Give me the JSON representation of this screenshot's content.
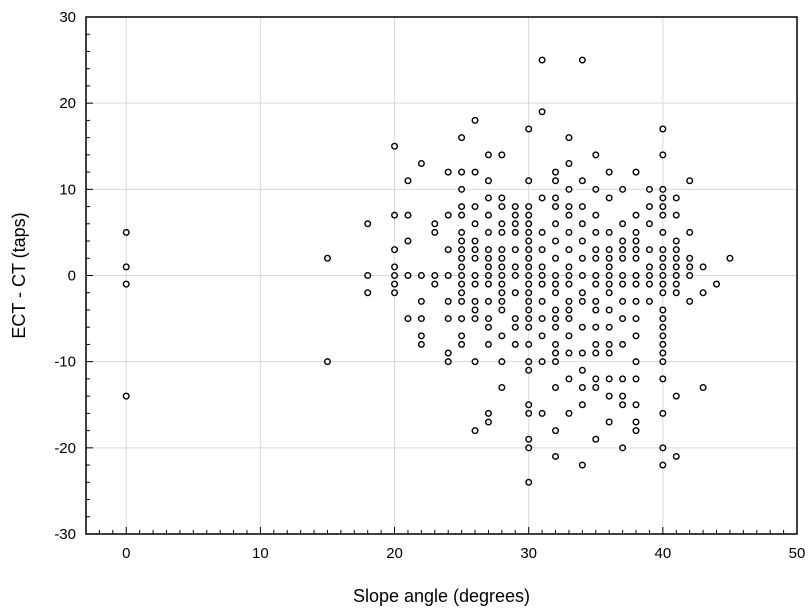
{
  "chart_data": {
    "type": "scatter",
    "title": "",
    "xlabel": "Slope angle (degrees)",
    "ylabel": "ECT - CT (taps)",
    "xlim": [
      -3,
      50
    ],
    "ylim": [
      -30,
      30
    ],
    "x_ticks": [
      0,
      10,
      20,
      30,
      40,
      50
    ],
    "y_ticks": [
      -30,
      -20,
      -10,
      0,
      10,
      20,
      30
    ],
    "x_tick_labels": [
      "0",
      "10",
      "20",
      "30",
      "40",
      "50"
    ],
    "y_tick_labels": [
      "-30",
      "-20",
      "-10",
      "0",
      "10",
      "20",
      "30"
    ],
    "grid": true,
    "marker": "open-circle",
    "points": [
      [
        0,
        5
      ],
      [
        0,
        1
      ],
      [
        0,
        -1
      ],
      [
        0,
        -14
      ],
      [
        15,
        2
      ],
      [
        15,
        -10
      ],
      [
        18,
        6
      ],
      [
        18,
        0
      ],
      [
        18,
        -2
      ],
      [
        20,
        15
      ],
      [
        20,
        7
      ],
      [
        20,
        3
      ],
      [
        20,
        1
      ],
      [
        20,
        0
      ],
      [
        20,
        -1
      ],
      [
        20,
        -2
      ],
      [
        21,
        11
      ],
      [
        21,
        7
      ],
      [
        21,
        4
      ],
      [
        21,
        0
      ],
      [
        21,
        -5
      ],
      [
        22,
        13
      ],
      [
        22,
        0
      ],
      [
        22,
        -3
      ],
      [
        22,
        -5
      ],
      [
        22,
        -7
      ],
      [
        22,
        -8
      ],
      [
        23,
        5
      ],
      [
        23,
        6
      ],
      [
        23,
        0
      ],
      [
        23,
        -1
      ],
      [
        24,
        12
      ],
      [
        24,
        7
      ],
      [
        24,
        3
      ],
      [
        24,
        0
      ],
      [
        24,
        -3
      ],
      [
        24,
        -5
      ],
      [
        24,
        -9
      ],
      [
        24,
        -10
      ],
      [
        25,
        16
      ],
      [
        25,
        12
      ],
      [
        25,
        10
      ],
      [
        25,
        8
      ],
      [
        25,
        7
      ],
      [
        25,
        5
      ],
      [
        25,
        4
      ],
      [
        25,
        3
      ],
      [
        25,
        2
      ],
      [
        25,
        1
      ],
      [
        25,
        0
      ],
      [
        25,
        -1
      ],
      [
        25,
        -2
      ],
      [
        25,
        -3
      ],
      [
        25,
        -5
      ],
      [
        25,
        -7
      ],
      [
        25,
        -8
      ],
      [
        26,
        18
      ],
      [
        26,
        12
      ],
      [
        26,
        8
      ],
      [
        26,
        6
      ],
      [
        26,
        4
      ],
      [
        26,
        3
      ],
      [
        26,
        2
      ],
      [
        26,
        0
      ],
      [
        26,
        -1
      ],
      [
        26,
        -3
      ],
      [
        26,
        -4
      ],
      [
        26,
        -5
      ],
      [
        26,
        -10
      ],
      [
        26,
        -18
      ],
      [
        27,
        14
      ],
      [
        27,
        11
      ],
      [
        27,
        9
      ],
      [
        27,
        7
      ],
      [
        27,
        5
      ],
      [
        27,
        3
      ],
      [
        27,
        2
      ],
      [
        27,
        1
      ],
      [
        27,
        0
      ],
      [
        27,
        -1
      ],
      [
        27,
        -3
      ],
      [
        27,
        -5
      ],
      [
        27,
        -6
      ],
      [
        27,
        -8
      ],
      [
        27,
        -16
      ],
      [
        27,
        -17
      ],
      [
        28,
        14
      ],
      [
        28,
        9
      ],
      [
        28,
        8
      ],
      [
        28,
        6
      ],
      [
        28,
        5
      ],
      [
        28,
        3
      ],
      [
        28,
        2
      ],
      [
        28,
        1
      ],
      [
        28,
        0
      ],
      [
        28,
        -1
      ],
      [
        28,
        -2
      ],
      [
        28,
        -3
      ],
      [
        28,
        -4
      ],
      [
        28,
        -7
      ],
      [
        28,
        -10
      ],
      [
        28,
        -13
      ],
      [
        29,
        8
      ],
      [
        29,
        7
      ],
      [
        29,
        6
      ],
      [
        29,
        5
      ],
      [
        29,
        3
      ],
      [
        29,
        1
      ],
      [
        29,
        0
      ],
      [
        29,
        -2
      ],
      [
        29,
        -5
      ],
      [
        29,
        -6
      ],
      [
        29,
        -8
      ],
      [
        30,
        17
      ],
      [
        30,
        11
      ],
      [
        30,
        8
      ],
      [
        30,
        7
      ],
      [
        30,
        6
      ],
      [
        30,
        5
      ],
      [
        30,
        4
      ],
      [
        30,
        3
      ],
      [
        30,
        2
      ],
      [
        30,
        1
      ],
      [
        30,
        0
      ],
      [
        30,
        -1
      ],
      [
        30,
        -2
      ],
      [
        30,
        -3
      ],
      [
        30,
        -4
      ],
      [
        30,
        -5
      ],
      [
        30,
        -6
      ],
      [
        30,
        -8
      ],
      [
        30,
        -10
      ],
      [
        30,
        -11
      ],
      [
        30,
        -15
      ],
      [
        30,
        -16
      ],
      [
        30,
        -19
      ],
      [
        30,
        -20
      ],
      [
        30,
        -24
      ],
      [
        31,
        25
      ],
      [
        31,
        19
      ],
      [
        31,
        9
      ],
      [
        31,
        5
      ],
      [
        31,
        3
      ],
      [
        31,
        1
      ],
      [
        31,
        0
      ],
      [
        31,
        -1
      ],
      [
        31,
        -3
      ],
      [
        31,
        -5
      ],
      [
        31,
        -7
      ],
      [
        31,
        -10
      ],
      [
        31,
        -16
      ],
      [
        32,
        12
      ],
      [
        32,
        11
      ],
      [
        32,
        9
      ],
      [
        32,
        8
      ],
      [
        32,
        6
      ],
      [
        32,
        4
      ],
      [
        32,
        2
      ],
      [
        32,
        0
      ],
      [
        32,
        -1
      ],
      [
        32,
        -2
      ],
      [
        32,
        -4
      ],
      [
        32,
        -5
      ],
      [
        32,
        -6
      ],
      [
        32,
        -8
      ],
      [
        32,
        -9
      ],
      [
        32,
        -10
      ],
      [
        32,
        -13
      ],
      [
        32,
        -18
      ],
      [
        32,
        -21
      ],
      [
        33,
        16
      ],
      [
        33,
        13
      ],
      [
        33,
        10
      ],
      [
        33,
        8
      ],
      [
        33,
        7
      ],
      [
        33,
        5
      ],
      [
        33,
        3
      ],
      [
        33,
        1
      ],
      [
        33,
        0
      ],
      [
        33,
        -1
      ],
      [
        33,
        -3
      ],
      [
        33,
        -4
      ],
      [
        33,
        -5
      ],
      [
        33,
        -7
      ],
      [
        33,
        -9
      ],
      [
        33,
        -12
      ],
      [
        33,
        -16
      ],
      [
        34,
        25
      ],
      [
        34,
        11
      ],
      [
        34,
        8
      ],
      [
        34,
        6
      ],
      [
        34,
        4
      ],
      [
        34,
        2
      ],
      [
        34,
        0
      ],
      [
        34,
        -2
      ],
      [
        34,
        -3
      ],
      [
        34,
        -6
      ],
      [
        34,
        -9
      ],
      [
        34,
        -11
      ],
      [
        34,
        -13
      ],
      [
        34,
        -15
      ],
      [
        34,
        -22
      ],
      [
        35,
        14
      ],
      [
        35,
        10
      ],
      [
        35,
        7
      ],
      [
        35,
        5
      ],
      [
        35,
        3
      ],
      [
        35,
        2
      ],
      [
        35,
        0
      ],
      [
        35,
        -1
      ],
      [
        35,
        -3
      ],
      [
        35,
        -4
      ],
      [
        35,
        -6
      ],
      [
        35,
        -8
      ],
      [
        35,
        -9
      ],
      [
        35,
        -12
      ],
      [
        35,
        -13
      ],
      [
        35,
        -19
      ],
      [
        36,
        12
      ],
      [
        36,
        9
      ],
      [
        36,
        5
      ],
      [
        36,
        3
      ],
      [
        36,
        2
      ],
      [
        36,
        1
      ],
      [
        36,
        0
      ],
      [
        36,
        -1
      ],
      [
        36,
        -2
      ],
      [
        36,
        -4
      ],
      [
        36,
        -6
      ],
      [
        36,
        -8
      ],
      [
        36,
        -9
      ],
      [
        36,
        -12
      ],
      [
        36,
        -14
      ],
      [
        36,
        -17
      ],
      [
        37,
        10
      ],
      [
        37,
        6
      ],
      [
        37,
        4
      ],
      [
        37,
        3
      ],
      [
        37,
        2
      ],
      [
        37,
        0
      ],
      [
        37,
        -1
      ],
      [
        37,
        -3
      ],
      [
        37,
        -5
      ],
      [
        37,
        -8
      ],
      [
        37,
        -12
      ],
      [
        37,
        -14
      ],
      [
        37,
        -15
      ],
      [
        37,
        -20
      ],
      [
        38,
        12
      ],
      [
        38,
        7
      ],
      [
        38,
        5
      ],
      [
        38,
        4
      ],
      [
        38,
        3
      ],
      [
        38,
        2
      ],
      [
        38,
        0
      ],
      [
        38,
        -1
      ],
      [
        38,
        -3
      ],
      [
        38,
        -5
      ],
      [
        38,
        -7
      ],
      [
        38,
        -10
      ],
      [
        38,
        -12
      ],
      [
        38,
        -15
      ],
      [
        38,
        -17
      ],
      [
        38,
        -18
      ],
      [
        39,
        10
      ],
      [
        39,
        8
      ],
      [
        39,
        6
      ],
      [
        39,
        3
      ],
      [
        39,
        1
      ],
      [
        39,
        0
      ],
      [
        39,
        -1
      ],
      [
        39,
        -3
      ],
      [
        40,
        17
      ],
      [
        40,
        14
      ],
      [
        40,
        10
      ],
      [
        40,
        9
      ],
      [
        40,
        8
      ],
      [
        40,
        7
      ],
      [
        40,
        5
      ],
      [
        40,
        3
      ],
      [
        40,
        2
      ],
      [
        40,
        1
      ],
      [
        40,
        0
      ],
      [
        40,
        -1
      ],
      [
        40,
        -2
      ],
      [
        40,
        -4
      ],
      [
        40,
        -5
      ],
      [
        40,
        -6
      ],
      [
        40,
        -7
      ],
      [
        40,
        -8
      ],
      [
        40,
        -9
      ],
      [
        40,
        -10
      ],
      [
        40,
        -12
      ],
      [
        40,
        -16
      ],
      [
        40,
        -20
      ],
      [
        40,
        -22
      ],
      [
        41,
        9
      ],
      [
        41,
        7
      ],
      [
        41,
        4
      ],
      [
        41,
        3
      ],
      [
        41,
        2
      ],
      [
        41,
        1
      ],
      [
        41,
        0
      ],
      [
        41,
        -1
      ],
      [
        41,
        -2
      ],
      [
        41,
        -14
      ],
      [
        41,
        -21
      ],
      [
        42,
        11
      ],
      [
        42,
        5
      ],
      [
        42,
        2
      ],
      [
        42,
        1
      ],
      [
        42,
        0
      ],
      [
        42,
        -3
      ],
      [
        43,
        1
      ],
      [
        43,
        -2
      ],
      [
        43,
        -13
      ],
      [
        44,
        -1
      ],
      [
        45,
        2
      ]
    ]
  }
}
